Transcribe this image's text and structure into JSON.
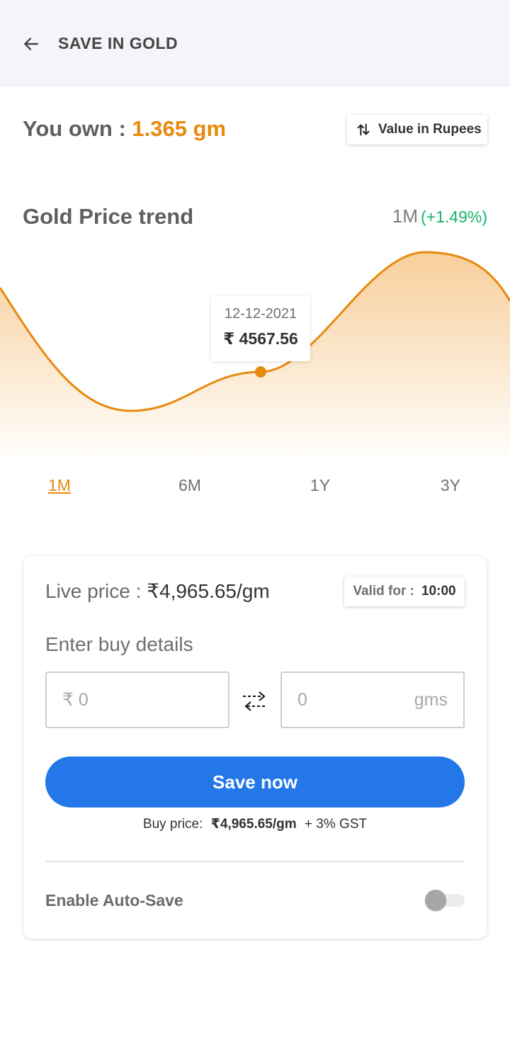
{
  "header": {
    "title": "SAVE IN GOLD",
    "back_icon": "arrow-left-icon"
  },
  "holdings": {
    "label": "You own :",
    "value": "1.365 gm",
    "toggle_label": "Value in Rupees",
    "toggle_icon": "swap-vertical-icon"
  },
  "trend": {
    "title": "Gold Price trend",
    "period": "1M",
    "change": "(+1.49%)",
    "tooltip_date": "12-12-2021",
    "tooltip_price": "₹ 4567.56",
    "tabs": [
      {
        "label": "1M",
        "active": true
      },
      {
        "label": "6M",
        "active": false
      },
      {
        "label": "1Y",
        "active": false
      },
      {
        "label": "3Y",
        "active": false
      }
    ]
  },
  "buy_card": {
    "live_label": "Live price :",
    "live_price": "₹4,965.65/gm",
    "valid_label": "Valid for :",
    "valid_time": "10:00",
    "enter_label": "Enter buy details",
    "rupee_placeholder": "₹ 0",
    "gms_value": "0",
    "gms_unit": "gms",
    "save_button": "Save now",
    "buy_price_label": "Buy price:",
    "buy_price_value": "₹4,965.65/gm",
    "gst_note": "+ 3% GST",
    "autosave_label": "Enable Auto-Save",
    "autosave_enabled": false
  },
  "colors": {
    "accent": "#e8890c",
    "positive": "#17b26a",
    "primary_button": "#2377e8"
  }
}
